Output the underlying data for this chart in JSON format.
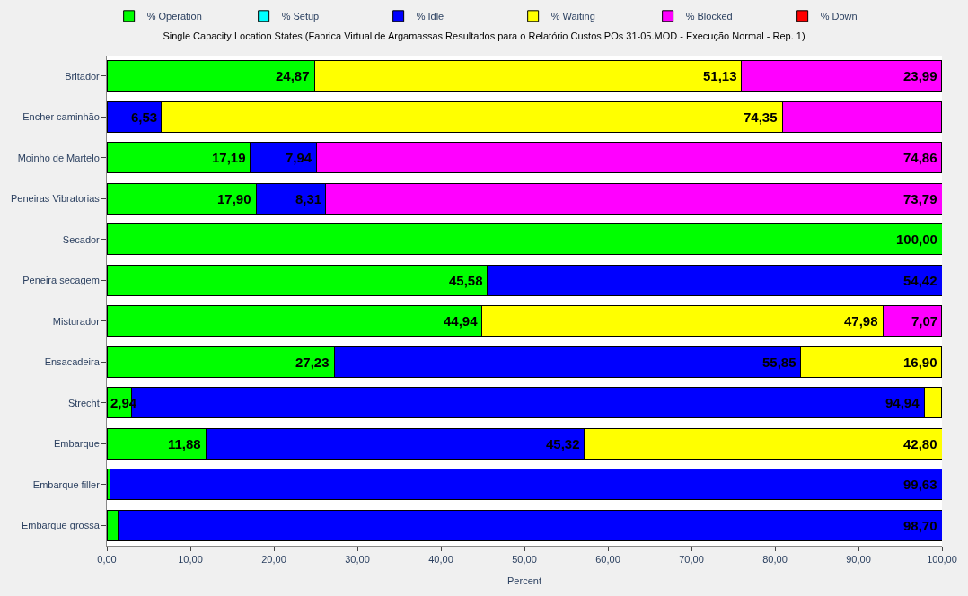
{
  "chart_data": {
    "type": "bar",
    "orientation": "horizontal",
    "stacked": true,
    "title": "Single Capacity Location States (Fabrica Virtual de Argamassas Resultados para o Relatório Custos POs 31-05.MOD - Execução Normal - Rep. 1)",
    "xlabel": "Percent",
    "categories": [
      "Britador",
      "Encher caminhão",
      "Moinho de Martelo",
      "Peneiras Vibratorias",
      "Secador",
      "Peneira secagem",
      "Misturador",
      "Ensacadeira",
      "Strecht",
      "Embarque",
      "Embarque filler",
      "Embarque grossa"
    ],
    "series": [
      {
        "name": "% Operation",
        "color": "#00ff00",
        "values": [
          24.87,
          null,
          17.19,
          17.9,
          100.0,
          45.58,
          44.94,
          27.23,
          2.94,
          11.88,
          0.37,
          1.3
        ],
        "value_labels": [
          "24,87",
          null,
          "17,19",
          "17,90",
          "100,00",
          "45,58",
          "44,94",
          "27,23",
          "2,94",
          "11,88",
          null,
          null
        ]
      },
      {
        "name": "% Setup",
        "color": "#00ffff",
        "values": [
          null,
          null,
          null,
          null,
          null,
          null,
          null,
          null,
          null,
          null,
          null,
          null
        ]
      },
      {
        "name": "% Idle",
        "color": "#0000ff",
        "values": [
          null,
          6.53,
          7.94,
          8.31,
          null,
          54.42,
          null,
          55.85,
          94.94,
          45.32,
          99.63,
          98.7
        ],
        "value_labels": [
          null,
          "6,53",
          "7,94",
          "8,31",
          null,
          "54,42",
          null,
          "55,85",
          "94,94",
          "45,32",
          "99,63",
          "98,70"
        ]
      },
      {
        "name": "% Waiting",
        "color": "#ffff00",
        "values": [
          51.13,
          74.35,
          null,
          null,
          null,
          null,
          47.98,
          16.9,
          2.1,
          42.8,
          null,
          null
        ],
        "value_labels": [
          "51,13",
          "74,35",
          null,
          null,
          null,
          null,
          "47,98",
          "16,90",
          null,
          "42,80",
          null,
          null
        ]
      },
      {
        "name": "% Blocked",
        "color": "#ff00ff",
        "values": [
          23.99,
          19.1,
          74.86,
          73.79,
          null,
          null,
          7.07,
          null,
          null,
          null,
          null,
          null
        ],
        "value_labels": [
          "23,99",
          null,
          "74,86",
          "73,79",
          null,
          null,
          "7,07",
          null,
          null,
          null,
          null,
          null
        ]
      },
      {
        "name": "% Down",
        "color": "#ff0000",
        "values": [
          null,
          null,
          null,
          null,
          null,
          null,
          null,
          null,
          null,
          null,
          null,
          null
        ]
      }
    ],
    "xlim": [
      0,
      100
    ],
    "xticks": [
      {
        "value": 0,
        "label": "0,00"
      },
      {
        "value": 10,
        "label": "10,00"
      },
      {
        "value": 20,
        "label": "20,00"
      },
      {
        "value": 30,
        "label": "30,00"
      },
      {
        "value": 40,
        "label": "40,00"
      },
      {
        "value": 50,
        "label": "50,00"
      },
      {
        "value": 60,
        "label": "60,00"
      },
      {
        "value": 70,
        "label": "70,00"
      },
      {
        "value": 80,
        "label": "80,00"
      },
      {
        "value": 90,
        "label": "90,00"
      },
      {
        "value": 100,
        "label": "100,00"
      }
    ],
    "grid": false,
    "legend": "top"
  }
}
